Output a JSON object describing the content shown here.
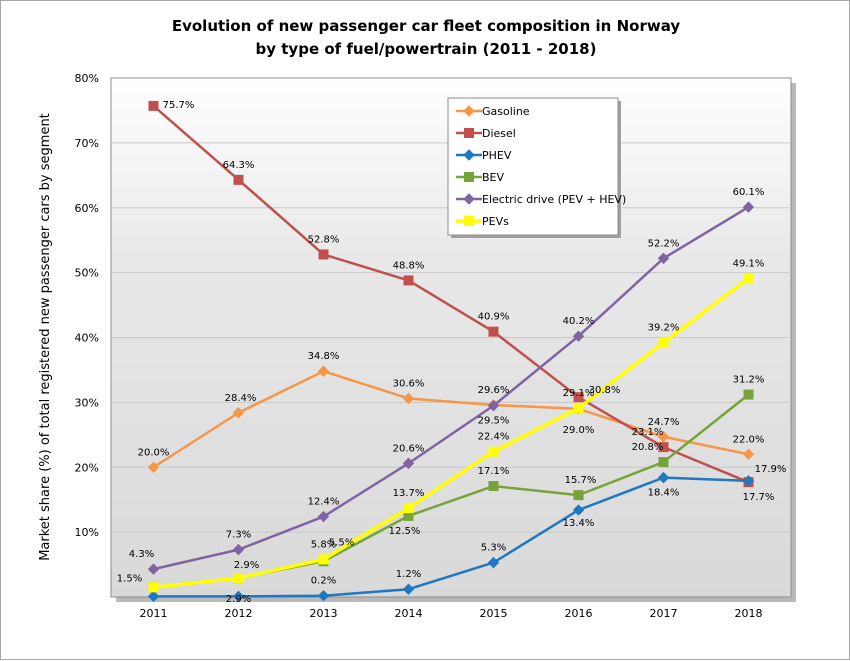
{
  "chart_data": {
    "type": "line",
    "title": "Evolution of new passenger car fleet composition in Norway",
    "subtitle": "by type of fuel/powertrain (2011 - 2018)",
    "xlabel": "",
    "ylabel": "Market share (%) of total registered new passenger cars by segment",
    "categories": [
      "2011",
      "2012",
      "2013",
      "2014",
      "2015",
      "2016",
      "2017",
      "2018"
    ],
    "ylim": [
      0,
      80
    ],
    "yticks": [
      "10%",
      "20%",
      "30%",
      "40%",
      "50%",
      "60%",
      "70%",
      "80%"
    ],
    "grid": true,
    "legend_position": "top-center",
    "series": [
      {
        "name": "Gasoline",
        "color": "#f79646",
        "marker": "diamond",
        "values": [
          20.0,
          28.4,
          34.8,
          30.6,
          29.6,
          29.0,
          24.7,
          22.0
        ],
        "labels": [
          "20.0%",
          "28.4%",
          "34.8%",
          "30.6%",
          "29.6%",
          "29.0%",
          "24.7%",
          "22.0%"
        ]
      },
      {
        "name": "Diesel",
        "color": "#c0504d",
        "marker": "square",
        "values": [
          75.7,
          64.3,
          52.8,
          48.8,
          40.9,
          30.8,
          23.1,
          17.7
        ],
        "labels": [
          "75.7%",
          "64.3%",
          "52.8%",
          "48.8%",
          "40.9%",
          "30.8%",
          "23.1%",
          "17.7%"
        ]
      },
      {
        "name": "PHEV",
        "color": "#1f78c1",
        "marker": "diamond",
        "values": [
          0.1,
          0.1,
          0.2,
          1.2,
          5.3,
          13.4,
          18.4,
          17.9
        ],
        "labels": [
          "",
          "",
          "0.2%",
          "1.2%",
          "5.3%",
          "13.4%",
          "18.4%",
          "17.9%"
        ]
      },
      {
        "name": "BEV",
        "color": "#77a33b",
        "marker": "square",
        "values": [
          1.5,
          2.9,
          5.5,
          12.5,
          17.1,
          15.7,
          20.8,
          31.2
        ],
        "labels": [
          "1.5%",
          "2.9%",
          "5.5%",
          "12.5%",
          "17.1%",
          "15.7%",
          "20.8%",
          "31.2%"
        ]
      },
      {
        "name": "Electric drive (PEV + HEV)",
        "color": "#8064a2",
        "marker": "diamond",
        "values": [
          4.3,
          7.3,
          12.4,
          20.6,
          29.5,
          40.2,
          52.2,
          60.1
        ],
        "labels": [
          "4.3%",
          "7.3%",
          "12.4%",
          "20.6%",
          "29.5%",
          "40.2%",
          "52.2%",
          "60.1%"
        ]
      },
      {
        "name": "PEVs",
        "color": "#ffff00",
        "marker": "square",
        "values": [
          1.5,
          2.9,
          5.8,
          13.7,
          22.4,
          29.1,
          39.2,
          49.1
        ],
        "labels": [
          "",
          "2.9%",
          "5.8%",
          "13.7%",
          "22.4%",
          "29.1%",
          "39.2%",
          "49.1%"
        ]
      }
    ]
  }
}
